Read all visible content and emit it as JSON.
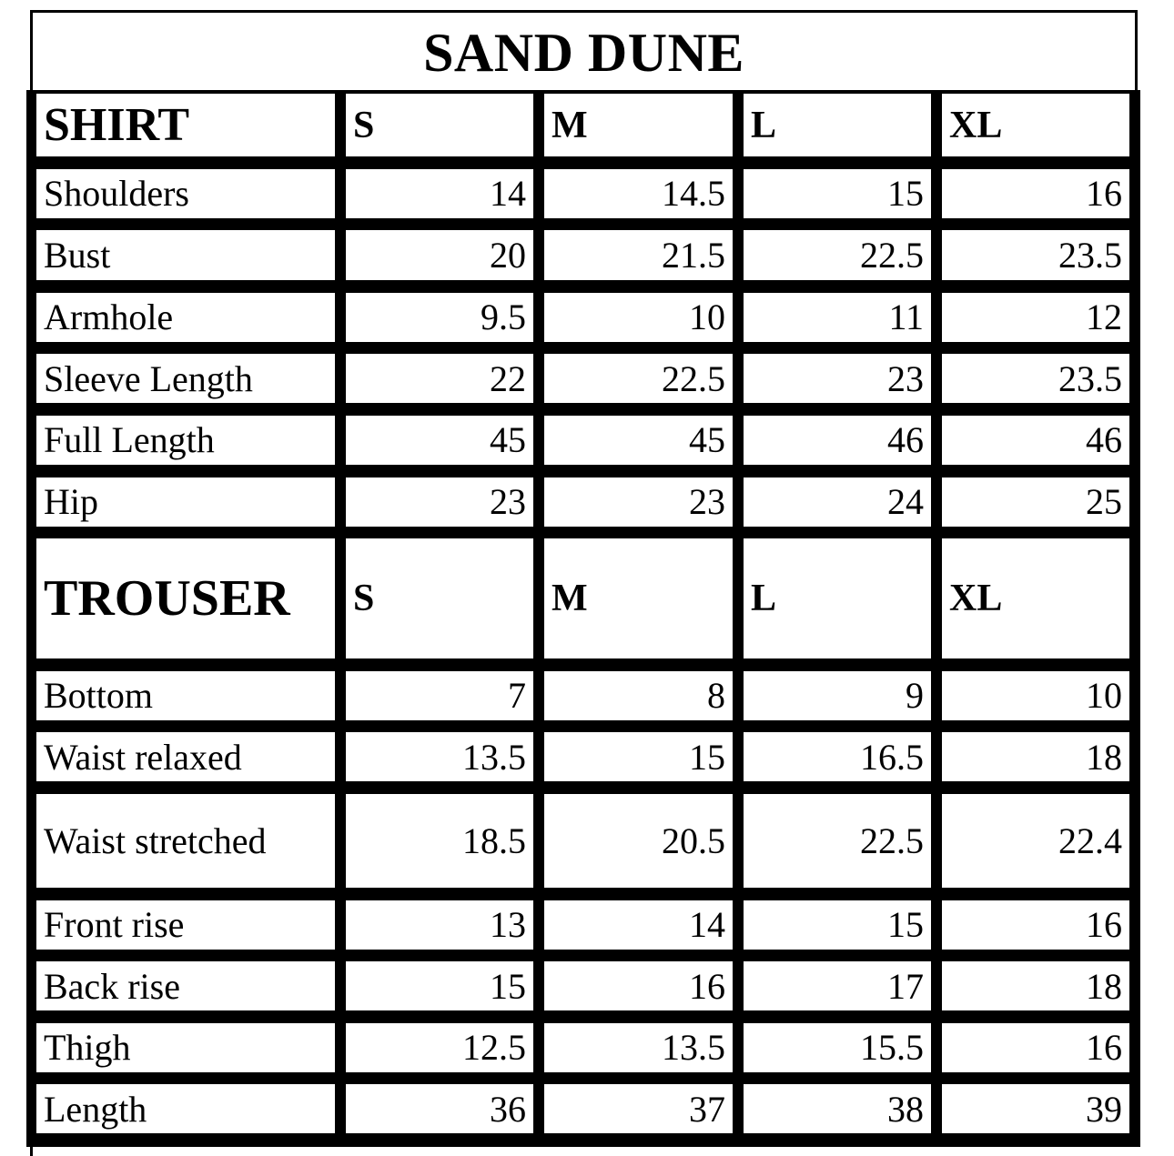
{
  "title": "SAND DUNE",
  "sizes": [
    "S",
    "M",
    "L",
    "XL"
  ],
  "shirt": {
    "heading": "SHIRT",
    "rows": [
      {
        "label": "Shoulders",
        "values": [
          "14",
          "14.5",
          "15",
          "16"
        ]
      },
      {
        "label": "Bust",
        "values": [
          "20",
          "21.5",
          "22.5",
          "23.5"
        ]
      },
      {
        "label": "Armhole",
        "values": [
          "9.5",
          "10",
          "11",
          "12"
        ]
      },
      {
        "label": "Sleeve Length",
        "values": [
          "22",
          "22.5",
          "23",
          "23.5"
        ]
      },
      {
        "label": "Full Length",
        "values": [
          "45",
          "45",
          "46",
          "46"
        ]
      },
      {
        "label": "Hip",
        "values": [
          "23",
          "23",
          "24",
          "25"
        ]
      }
    ]
  },
  "trouser": {
    "heading": "TROUSER",
    "rows": [
      {
        "label": "Bottom",
        "values": [
          "7",
          "8",
          "9",
          "10"
        ]
      },
      {
        "label": "Waist relaxed",
        "values": [
          "13.5",
          "15",
          "16.5",
          "18"
        ]
      },
      {
        "label": "Waist stretched",
        "values": [
          "18.5",
          "20.5",
          "22.5",
          "22.4"
        ]
      },
      {
        "label": "Front rise",
        "values": [
          "13",
          "14",
          "15",
          "16"
        ]
      },
      {
        "label": "Back rise",
        "values": [
          "15",
          "16",
          "17",
          "18"
        ]
      },
      {
        "label": "Thigh",
        "values": [
          "12.5",
          "13.5",
          "15.5",
          "16"
        ]
      },
      {
        "label": "Length",
        "values": [
          "36",
          "37",
          "38",
          "39"
        ]
      }
    ]
  }
}
